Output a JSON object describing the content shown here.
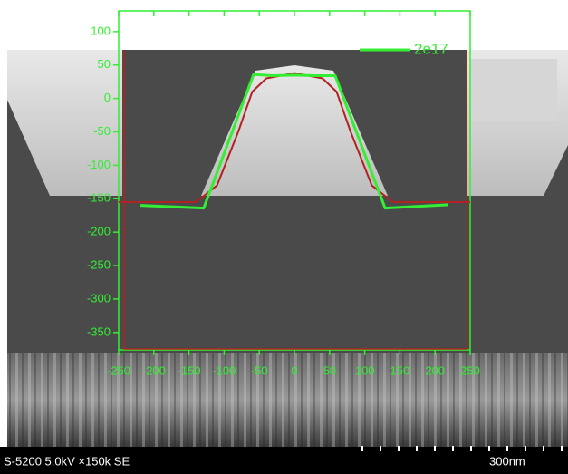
{
  "chart_data": {
    "type": "line",
    "series": [
      {
        "name": "2e17",
        "color": "#33ee33",
        "x": [
          -219,
          -129,
          -58,
          -32,
          0,
          32,
          58,
          129,
          219
        ],
        "values": [
          -160,
          -164,
          36,
          34,
          35,
          34,
          34,
          -164,
          -159
        ]
      },
      {
        "color": "#b22222",
        "x": [
          -250,
          -140,
          -110,
          -80,
          -60,
          -40,
          0,
          40,
          60,
          80,
          110,
          140,
          250
        ],
        "values": [
          -155,
          -155,
          -130,
          -50,
          10,
          30,
          38,
          30,
          10,
          -50,
          -130,
          -155,
          -155
        ]
      }
    ],
    "xlim": [
      -250,
      250
    ],
    "ylim": [
      -376,
      131
    ],
    "xticks": [
      -250,
      -200,
      -150,
      -100,
      -50,
      0,
      50,
      100,
      150,
      200,
      250
    ],
    "yticks": [
      -350,
      -300,
      -250,
      -200,
      -150,
      -100,
      -50,
      0,
      50,
      100
    ],
    "legend": "upper right"
  },
  "image_caption": {
    "info": "S-5200 5.0kV ×150k SE",
    "scale": "300nm"
  }
}
